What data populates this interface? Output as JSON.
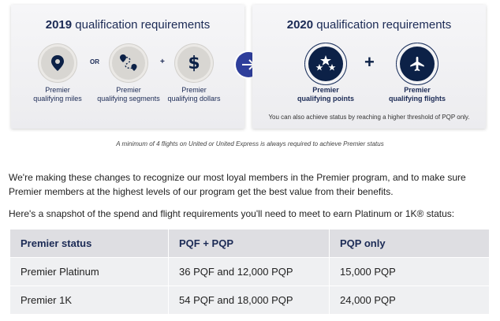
{
  "card2019": {
    "year": "2019",
    "title_rest": "qualification requirements",
    "items": [
      {
        "icon": "map-pin-icon",
        "caption_line1": "Premier",
        "caption_line2": "qualifying miles"
      },
      {
        "icon": "route-icon",
        "caption_line1": "Premier",
        "caption_line2": "qualifying segments"
      },
      {
        "icon": "dollar-icon",
        "caption_line1": "Premier",
        "caption_line2": "qualifying dollars"
      }
    ],
    "or_label": "OR",
    "plus_label": "+"
  },
  "arrow": {
    "icon": "arrow-right-icon"
  },
  "card2020": {
    "year": "2020",
    "title_rest": "qualification requirements",
    "items": [
      {
        "icon": "stars-icon",
        "caption_line1": "Premier",
        "caption_line2": "qualifying points"
      },
      {
        "icon": "airplane-icon",
        "caption_line1": "Premier",
        "caption_line2": "qualifying flights"
      }
    ],
    "plus_label": "+",
    "note": "You can also achieve status by reaching a higher threshold of PQP only."
  },
  "footnote": "A minimum of 4 flights on United or United Express is always required to achieve Premier status",
  "paragraphs": {
    "p1": "We're making these changes to recognize our most loyal members in the Premier program, and to make sure Premier members at the highest levels of our program get the best value from their benefits.",
    "p2": "Here's a snapshot of the spend and flight requirements you'll need to meet to earn Platinum or 1K® status:"
  },
  "table": {
    "headers": [
      "Premier status",
      "PQF + PQP",
      "PQP only"
    ],
    "rows": [
      [
        "Premier Platinum",
        "36 PQF and 12,000 PQP",
        "15,000 PQP"
      ],
      [
        "Premier 1K",
        "54 PQF and 18,000 PQP",
        "24,000 PQP"
      ]
    ]
  },
  "colors": {
    "navy": "#0c2147",
    "arrow_blue": "#2e3e9b",
    "card_bg": "#f0f0f2"
  }
}
